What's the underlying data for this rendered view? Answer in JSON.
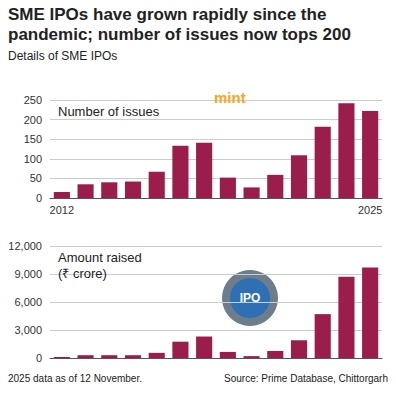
{
  "title": "SME IPOs have grown rapidly since the pandemic; number of issues now tops 200",
  "subtitle": "Details of SME IPOs",
  "logo": "mint",
  "icon_text": "IPO",
  "note": "2025 data as of 12 November.",
  "source": "Source: Prime Database, Chittorgarh",
  "chart_data": [
    {
      "type": "bar",
      "title": "Number of issues",
      "categories": [
        "2012",
        null,
        null,
        null,
        null,
        null,
        null,
        null,
        null,
        null,
        null,
        null,
        null,
        "2025"
      ],
      "values": [
        15,
        35,
        40,
        42,
        67,
        133,
        141,
        52,
        27,
        59,
        109,
        182,
        242,
        222
      ],
      "color": "#9b1d4b",
      "ylim": [
        0,
        250
      ],
      "yticks": [
        0,
        50,
        100,
        150,
        200,
        250
      ],
      "grid": true
    },
    {
      "type": "bar",
      "title": "Amount raised\n(₹ crore)",
      "categories": [
        null,
        null,
        null,
        null,
        null,
        null,
        null,
        null,
        null,
        null,
        null,
        null,
        null,
        null
      ],
      "values": [
        100,
        300,
        300,
        300,
        550,
        1750,
        2300,
        650,
        200,
        750,
        1900,
        4700,
        8700,
        9700
      ],
      "color": "#9b1d4b",
      "ylim": [
        0,
        12000
      ],
      "yticks": [
        0,
        {
          "value": 3000,
          "label": "3,000"
        },
        {
          "value": 6000,
          "label": "6,000"
        },
        {
          "value": 9000,
          "label": "9,000"
        },
        {
          "value": 12000,
          "label": "12,000"
        }
      ],
      "grid": true
    }
  ]
}
